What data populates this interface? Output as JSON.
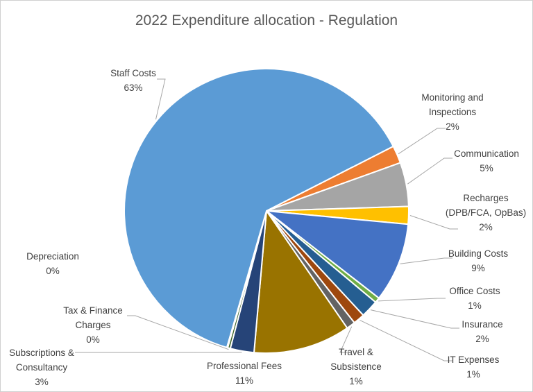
{
  "chart_data": {
    "type": "pie",
    "title": "2022 Expenditure allocation - Regulation",
    "slices": [
      {
        "label": [
          "Monitoring and",
          "Inspections"
        ],
        "pct_label": "2%",
        "value": 2,
        "color": "#ED7D31"
      },
      {
        "label": [
          "Communication"
        ],
        "pct_label": "5%",
        "value": 5,
        "color": "#A5A5A5"
      },
      {
        "label": [
          "Recharges",
          "(DPB/FCA, OpBas)"
        ],
        "pct_label": "2%",
        "value": 2,
        "color": "#FFC000"
      },
      {
        "label": [
          "Building Costs"
        ],
        "pct_label": "9%",
        "value": 9,
        "color": "#4472C4"
      },
      {
        "label": [
          "Office Costs"
        ],
        "pct_label": "1%",
        "value": 0.6,
        "color": "#70AD47"
      },
      {
        "label": [
          "Insurance"
        ],
        "pct_label": "2%",
        "value": 2,
        "color": "#255E91"
      },
      {
        "label": [
          "IT Expenses"
        ],
        "pct_label": "1%",
        "value": 1.3,
        "color": "#9E480E"
      },
      {
        "label": [
          "Travel &",
          "Subsistence"
        ],
        "pct_label": "1%",
        "value": 1,
        "color": "#636363"
      },
      {
        "label": [
          "Professional Fees"
        ],
        "pct_label": "11%",
        "value": 11,
        "color": "#997300"
      },
      {
        "label": [
          "Subscriptions &",
          "Consultancy"
        ],
        "pct_label": "3%",
        "value": 2.7,
        "color": "#264478"
      },
      {
        "label": [
          "Tax & Finance",
          "Charges"
        ],
        "pct_label": "0%",
        "value": 0.3,
        "color": "#43682B"
      },
      {
        "label": [
          "Depreciation"
        ],
        "pct_label": "0%",
        "value": 0.1,
        "color": "#7CAFDD"
      },
      {
        "label": [
          "Staff Costs"
        ],
        "pct_label": "63%",
        "value": 63,
        "color": "#5B9BD5"
      }
    ]
  }
}
